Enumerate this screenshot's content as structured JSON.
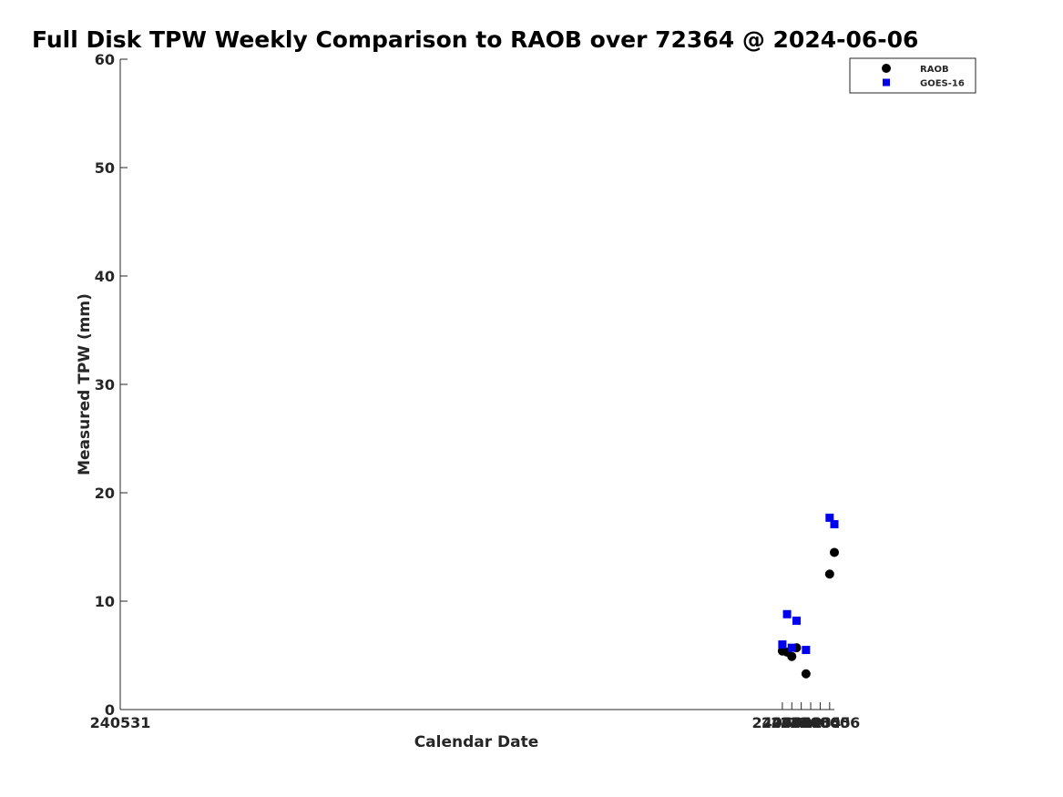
{
  "chart_data": {
    "type": "scatter",
    "title": "Full Disk TPW Weekly Comparison to RAOB over 72364 @ 2024-06-06",
    "xlabel": "Calendar Date",
    "ylabel": "Measured TPW (mm)",
    "xlim": [
      240531,
      240606.5
    ],
    "ylim": [
      0,
      60
    ],
    "xticks": [
      240531,
      240601,
      240602,
      240603,
      240604,
      240605,
      240606
    ],
    "xtick_labels": [
      "240531",
      "240601",
      "240602",
      "240603",
      "240604",
      "240605",
      "240606"
    ],
    "yticks": [
      0,
      10,
      20,
      30,
      40,
      50,
      60
    ],
    "ytick_labels": [
      "0",
      "10",
      "20",
      "30",
      "40",
      "50",
      "60"
    ],
    "grid": false,
    "legend_position": "top-right",
    "series": [
      {
        "name": "RAOB",
        "marker": "circle",
        "color": "#000000",
        "points": [
          {
            "x": 240601.0,
            "y": 5.4
          },
          {
            "x": 240601.5,
            "y": 5.3
          },
          {
            "x": 240602.0,
            "y": 4.9
          },
          {
            "x": 240602.5,
            "y": 5.7
          },
          {
            "x": 240603.5,
            "y": 3.3
          },
          {
            "x": 240606.0,
            "y": 12.5
          },
          {
            "x": 240606.5,
            "y": 14.5
          }
        ]
      },
      {
        "name": "GOES-16",
        "marker": "square",
        "color": "#0000ee",
        "points": [
          {
            "x": 240601.0,
            "y": 6.0
          },
          {
            "x": 240601.5,
            "y": 8.8
          },
          {
            "x": 240602.0,
            "y": 5.7
          },
          {
            "x": 240602.5,
            "y": 8.2
          },
          {
            "x": 240603.5,
            "y": 5.5
          },
          {
            "x": 240606.0,
            "y": 17.7
          },
          {
            "x": 240606.5,
            "y": 17.1
          }
        ]
      }
    ]
  }
}
